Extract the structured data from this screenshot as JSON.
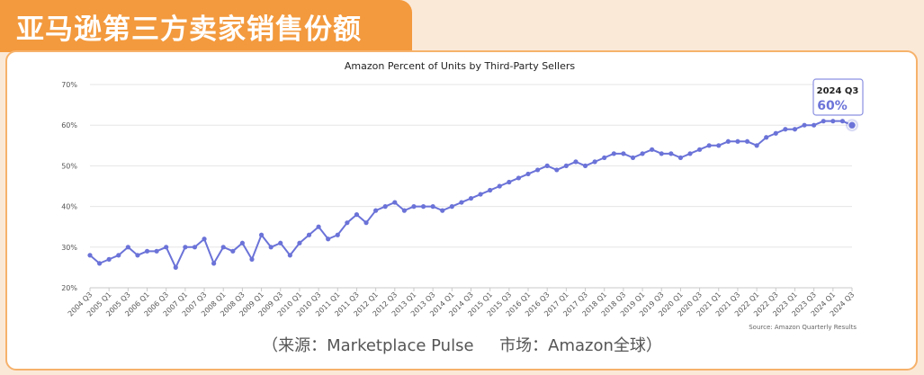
{
  "banner": {
    "title": "亚马逊第三方卖家销售份额"
  },
  "chart_data": {
    "type": "line",
    "title": "Amazon Percent of Units by Third-Party Sellers",
    "xlabel": "",
    "ylabel": "",
    "ylim": [
      20,
      70
    ],
    "yticks": [
      "20%",
      "30%",
      "40%",
      "50%",
      "60%",
      "70%"
    ],
    "x": [
      "2004 Q3",
      "2004 Q4",
      "2005 Q1",
      "2005 Q2",
      "2005 Q3",
      "2005 Q4",
      "2006 Q1",
      "2006 Q2",
      "2006 Q3",
      "2006 Q4",
      "2007 Q1",
      "2007 Q2",
      "2007 Q3",
      "2007 Q4",
      "2008 Q1",
      "2008 Q2",
      "2008 Q3",
      "2008 Q4",
      "2009 Q1",
      "2009 Q2",
      "2009 Q3",
      "2009 Q4",
      "2010 Q1",
      "2010 Q2",
      "2010 Q3",
      "2010 Q4",
      "2011 Q1",
      "2011 Q2",
      "2011 Q3",
      "2011 Q4",
      "2012 Q1",
      "2012 Q2",
      "2012 Q3",
      "2012 Q4",
      "2013 Q1",
      "2013 Q2",
      "2013 Q3",
      "2013 Q4",
      "2014 Q1",
      "2014 Q2",
      "2014 Q3",
      "2014 Q4",
      "2015 Q1",
      "2015 Q2",
      "2015 Q3",
      "2015 Q4",
      "2016 Q1",
      "2016 Q2",
      "2016 Q3",
      "2016 Q4",
      "2017 Q1",
      "2017 Q2",
      "2017 Q3",
      "2017 Q4",
      "2018 Q1",
      "2018 Q2",
      "2018 Q3",
      "2018 Q4",
      "2019 Q1",
      "2019 Q2",
      "2019 Q3",
      "2019 Q4",
      "2020 Q1",
      "2020 Q2",
      "2020 Q3",
      "2020 Q4",
      "2021 Q1",
      "2021 Q2",
      "2021 Q3",
      "2021 Q4",
      "2022 Q1",
      "2022 Q2",
      "2022 Q3",
      "2022 Q4",
      "2023 Q1",
      "2023 Q2",
      "2023 Q3",
      "2023 Q4",
      "2024 Q1",
      "2024 Q2",
      "2024 Q3"
    ],
    "x_tick_labels": [
      "2004 Q3",
      "2005 Q1",
      "2005 Q3",
      "2006 Q1",
      "2006 Q3",
      "2007 Q1",
      "2007 Q3",
      "2008 Q1",
      "2008 Q3",
      "2009 Q1",
      "2009 Q3",
      "2010 Q1",
      "2010 Q3",
      "2011 Q1",
      "2011 Q3",
      "2012 Q1",
      "2012 Q3",
      "2013 Q1",
      "2013 Q3",
      "2014 Q1",
      "2014 Q3",
      "2015 Q1",
      "2015 Q3",
      "2016 Q1",
      "2016 Q3",
      "2017 Q1",
      "2017 Q3",
      "2018 Q1",
      "2018 Q3",
      "2019 Q1",
      "2019 Q3",
      "2020 Q1",
      "2020 Q3",
      "2021 Q1",
      "2021 Q3",
      "2022 Q1",
      "2022 Q3",
      "2023 Q1",
      "2023 Q3",
      "2024 Q1",
      "2024 Q3"
    ],
    "series": [
      {
        "name": "",
        "color": "#6b73d8",
        "values": [
          28,
          26,
          27,
          28,
          30,
          28,
          29,
          29,
          30,
          25,
          30,
          30,
          32,
          26,
          30,
          29,
          31,
          27,
          33,
          30,
          31,
          28,
          31,
          33,
          35,
          32,
          33,
          36,
          38,
          36,
          39,
          40,
          41,
          39,
          40,
          40,
          40,
          39,
          40,
          41,
          42,
          43,
          44,
          45,
          46,
          47,
          48,
          49,
          50,
          49,
          50,
          51,
          50,
          51,
          52,
          53,
          53,
          52,
          53,
          54,
          53,
          53,
          52,
          53,
          54,
          55,
          55,
          56,
          56,
          56,
          55,
          57,
          58,
          59,
          59,
          60,
          60,
          61,
          61,
          61,
          60
        ]
      }
    ],
    "highlight": {
      "label": "2024 Q3",
      "value": "60%"
    },
    "grid": true,
    "legend": "none",
    "source_note": "Source: Amazon Quarterly Results"
  },
  "footer": {
    "source_text": "（来源：Marketplace Pulse     市场：Amazon全球）"
  }
}
